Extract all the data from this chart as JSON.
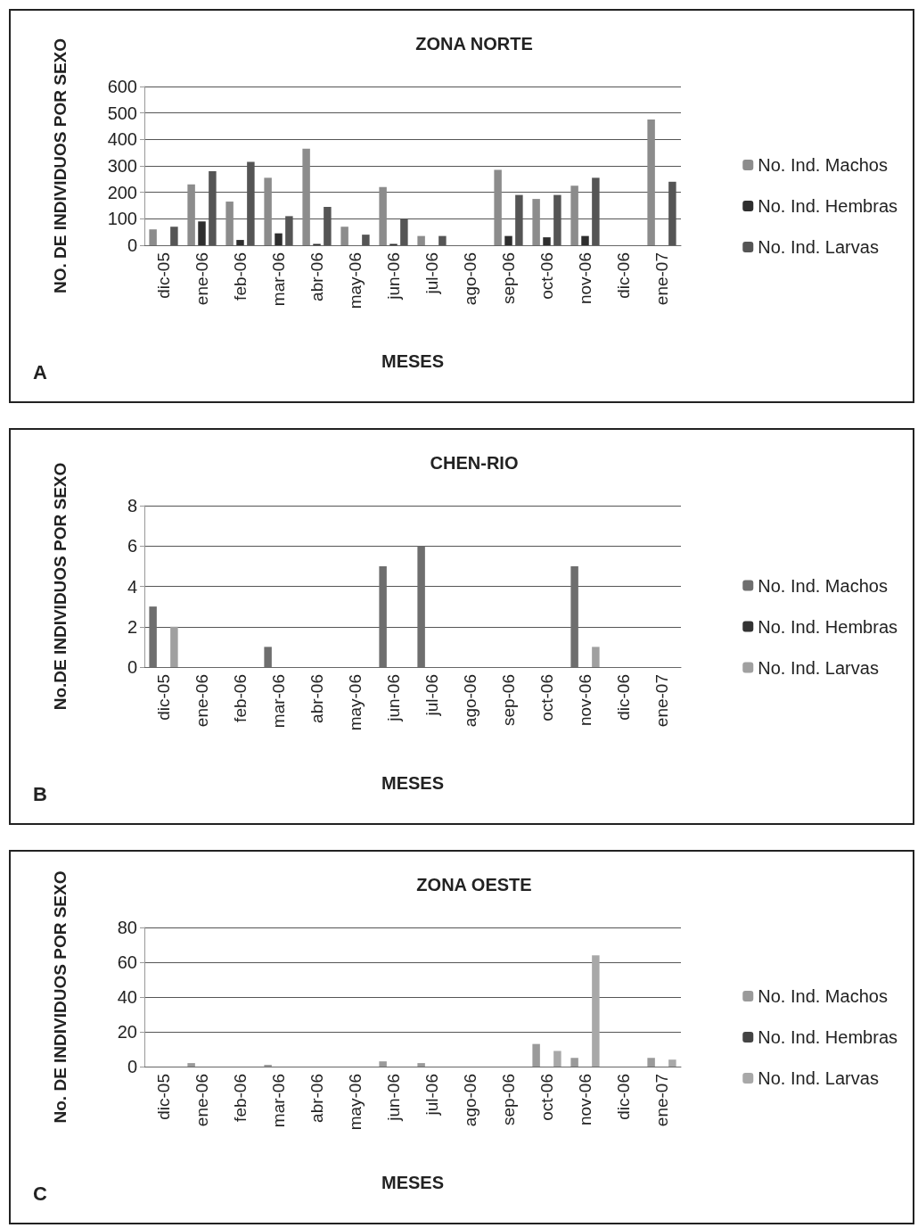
{
  "chart_data": [
    {
      "type": "bar",
      "title": "ZONA NORTE",
      "xlabel": "MESES",
      "ylabel": "NO. DE INDIVIDUOS POR SEXO",
      "annotations": [
        "A"
      ],
      "categories": [
        "dic-05",
        "ene-06",
        "feb-06",
        "mar-06",
        "abr-06",
        "may-06",
        "jun-06",
        "jul-06",
        "ago-06",
        "sep-06",
        "oct-06",
        "nov-06",
        "dic-06",
        "ene-07"
      ],
      "series": [
        {
          "name": "No. Ind. Machos",
          "color": "#8c8c8c",
          "values": [
            60,
            230,
            165,
            255,
            365,
            70,
            220,
            35,
            0,
            285,
            175,
            225,
            0,
            475
          ]
        },
        {
          "name": "No. Ind. Hembras",
          "color": "#2e2e2e",
          "values": [
            0,
            90,
            20,
            45,
            5,
            0,
            5,
            0,
            0,
            35,
            30,
            35,
            0,
            0
          ]
        },
        {
          "name": "No. Ind. Larvas",
          "color": "#555555",
          "values": [
            70,
            280,
            315,
            110,
            145,
            40,
            100,
            35,
            0,
            190,
            190,
            255,
            0,
            240
          ]
        }
      ],
      "ylim": [
        0,
        600
      ],
      "yticks": [
        0,
        100,
        200,
        300,
        400,
        500,
        600
      ],
      "grid": "y",
      "legend": "right"
    },
    {
      "type": "bar",
      "title": "CHEN-RIO",
      "xlabel": "MESES",
      "ylabel": "No.DE INDIVIDUOS POR SEXO",
      "annotations": [
        "B"
      ],
      "categories": [
        "dic-05",
        "ene-06",
        "feb-06",
        "mar-06",
        "abr-06",
        "may-06",
        "jun-06",
        "jul-06",
        "ago-06",
        "sep-06",
        "oct-06",
        "nov-06",
        "dic-06",
        "ene-07"
      ],
      "series": [
        {
          "name": "No. Ind. Machos",
          "color": "#6e6e6e",
          "values": [
            3,
            0,
            0,
            1,
            0,
            0,
            5,
            6,
            0,
            0,
            0,
            5,
            0,
            0
          ]
        },
        {
          "name": "No. Ind. Hembras",
          "color": "#333333",
          "values": [
            0,
            0,
            0,
            0,
            0,
            0,
            0,
            0,
            0,
            0,
            0,
            0,
            0,
            0
          ]
        },
        {
          "name": "No. Ind. Larvas",
          "color": "#a0a0a0",
          "values": [
            2,
            0,
            0,
            0,
            0,
            0,
            0,
            0,
            0,
            0,
            0,
            1,
            0,
            0
          ]
        }
      ],
      "ylim": [
        0,
        8
      ],
      "yticks": [
        0,
        2,
        4,
        6,
        8
      ],
      "grid": "y",
      "legend": "right"
    },
    {
      "type": "bar",
      "title": "ZONA OESTE",
      "xlabel": "MESES",
      "ylabel": "No. DE INDIVIDUOS POR SEXO",
      "annotations": [
        "C"
      ],
      "categories": [
        "dic-05",
        "ene-06",
        "feb-06",
        "mar-06",
        "abr-06",
        "may-06",
        "jun-06",
        "jul-06",
        "ago-06",
        "sep-06",
        "oct-06",
        "nov-06",
        "dic-06",
        "ene-07"
      ],
      "series": [
        {
          "name": "No. Ind. Machos",
          "color": "#9a9a9a",
          "values": [
            0,
            2,
            0,
            1,
            0,
            0,
            3,
            2,
            0,
            0,
            13,
            5,
            0,
            5
          ]
        },
        {
          "name": "No. Ind. Hembras",
          "color": "#444444",
          "values": [
            0,
            0,
            0,
            0,
            0,
            0,
            0,
            0,
            0,
            0,
            0,
            0,
            0,
            0
          ]
        },
        {
          "name": "No. Ind. Larvas",
          "color": "#a8a8a8",
          "values": [
            0,
            0,
            0,
            0,
            0,
            0,
            0,
            0,
            0,
            0,
            9,
            64,
            0,
            4
          ]
        }
      ],
      "ylim": [
        0,
        80
      ],
      "yticks": [
        0,
        20,
        40,
        60,
        80
      ],
      "grid": "y",
      "legend": "right"
    }
  ]
}
